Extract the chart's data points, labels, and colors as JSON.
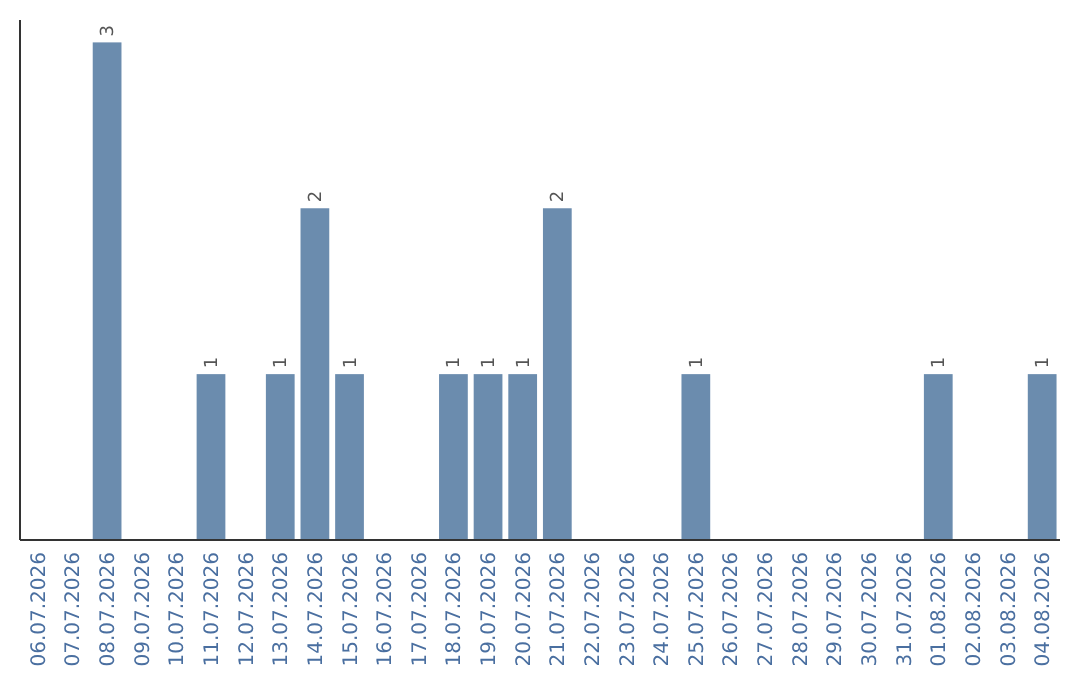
{
  "chart_data": {
    "type": "bar",
    "categories": [
      "06.07.2026",
      "07.07.2026",
      "08.07.2026",
      "09.07.2026",
      "10.07.2026",
      "11.07.2026",
      "12.07.2026",
      "13.07.2026",
      "14.07.2026",
      "15.07.2026",
      "16.07.2026",
      "17.07.2026",
      "18.07.2026",
      "19.07.2026",
      "20.07.2026",
      "21.07.2026",
      "22.07.2026",
      "23.07.2026",
      "24.07.2026",
      "25.07.2026",
      "26.07.2026",
      "27.07.2026",
      "28.07.2026",
      "29.07.2026",
      "30.07.2026",
      "31.07.2026",
      "01.08.2026",
      "02.08.2026",
      "03.08.2026",
      "04.08.2026"
    ],
    "values": [
      0,
      0,
      3,
      0,
      0,
      1,
      0,
      1,
      2,
      1,
      0,
      0,
      1,
      1,
      1,
      2,
      0,
      0,
      0,
      1,
      0,
      0,
      0,
      0,
      0,
      0,
      1,
      0,
      0,
      1
    ],
    "value_labels": [
      null,
      null,
      "3",
      null,
      null,
      "1",
      null,
      "1",
      "2",
      "1",
      null,
      null,
      "1",
      "1",
      "1",
      "2",
      null,
      null,
      null,
      "1",
      null,
      null,
      null,
      null,
      null,
      null,
      "1",
      null,
      null,
      "1"
    ],
    "color": "#6b8cae"
  }
}
